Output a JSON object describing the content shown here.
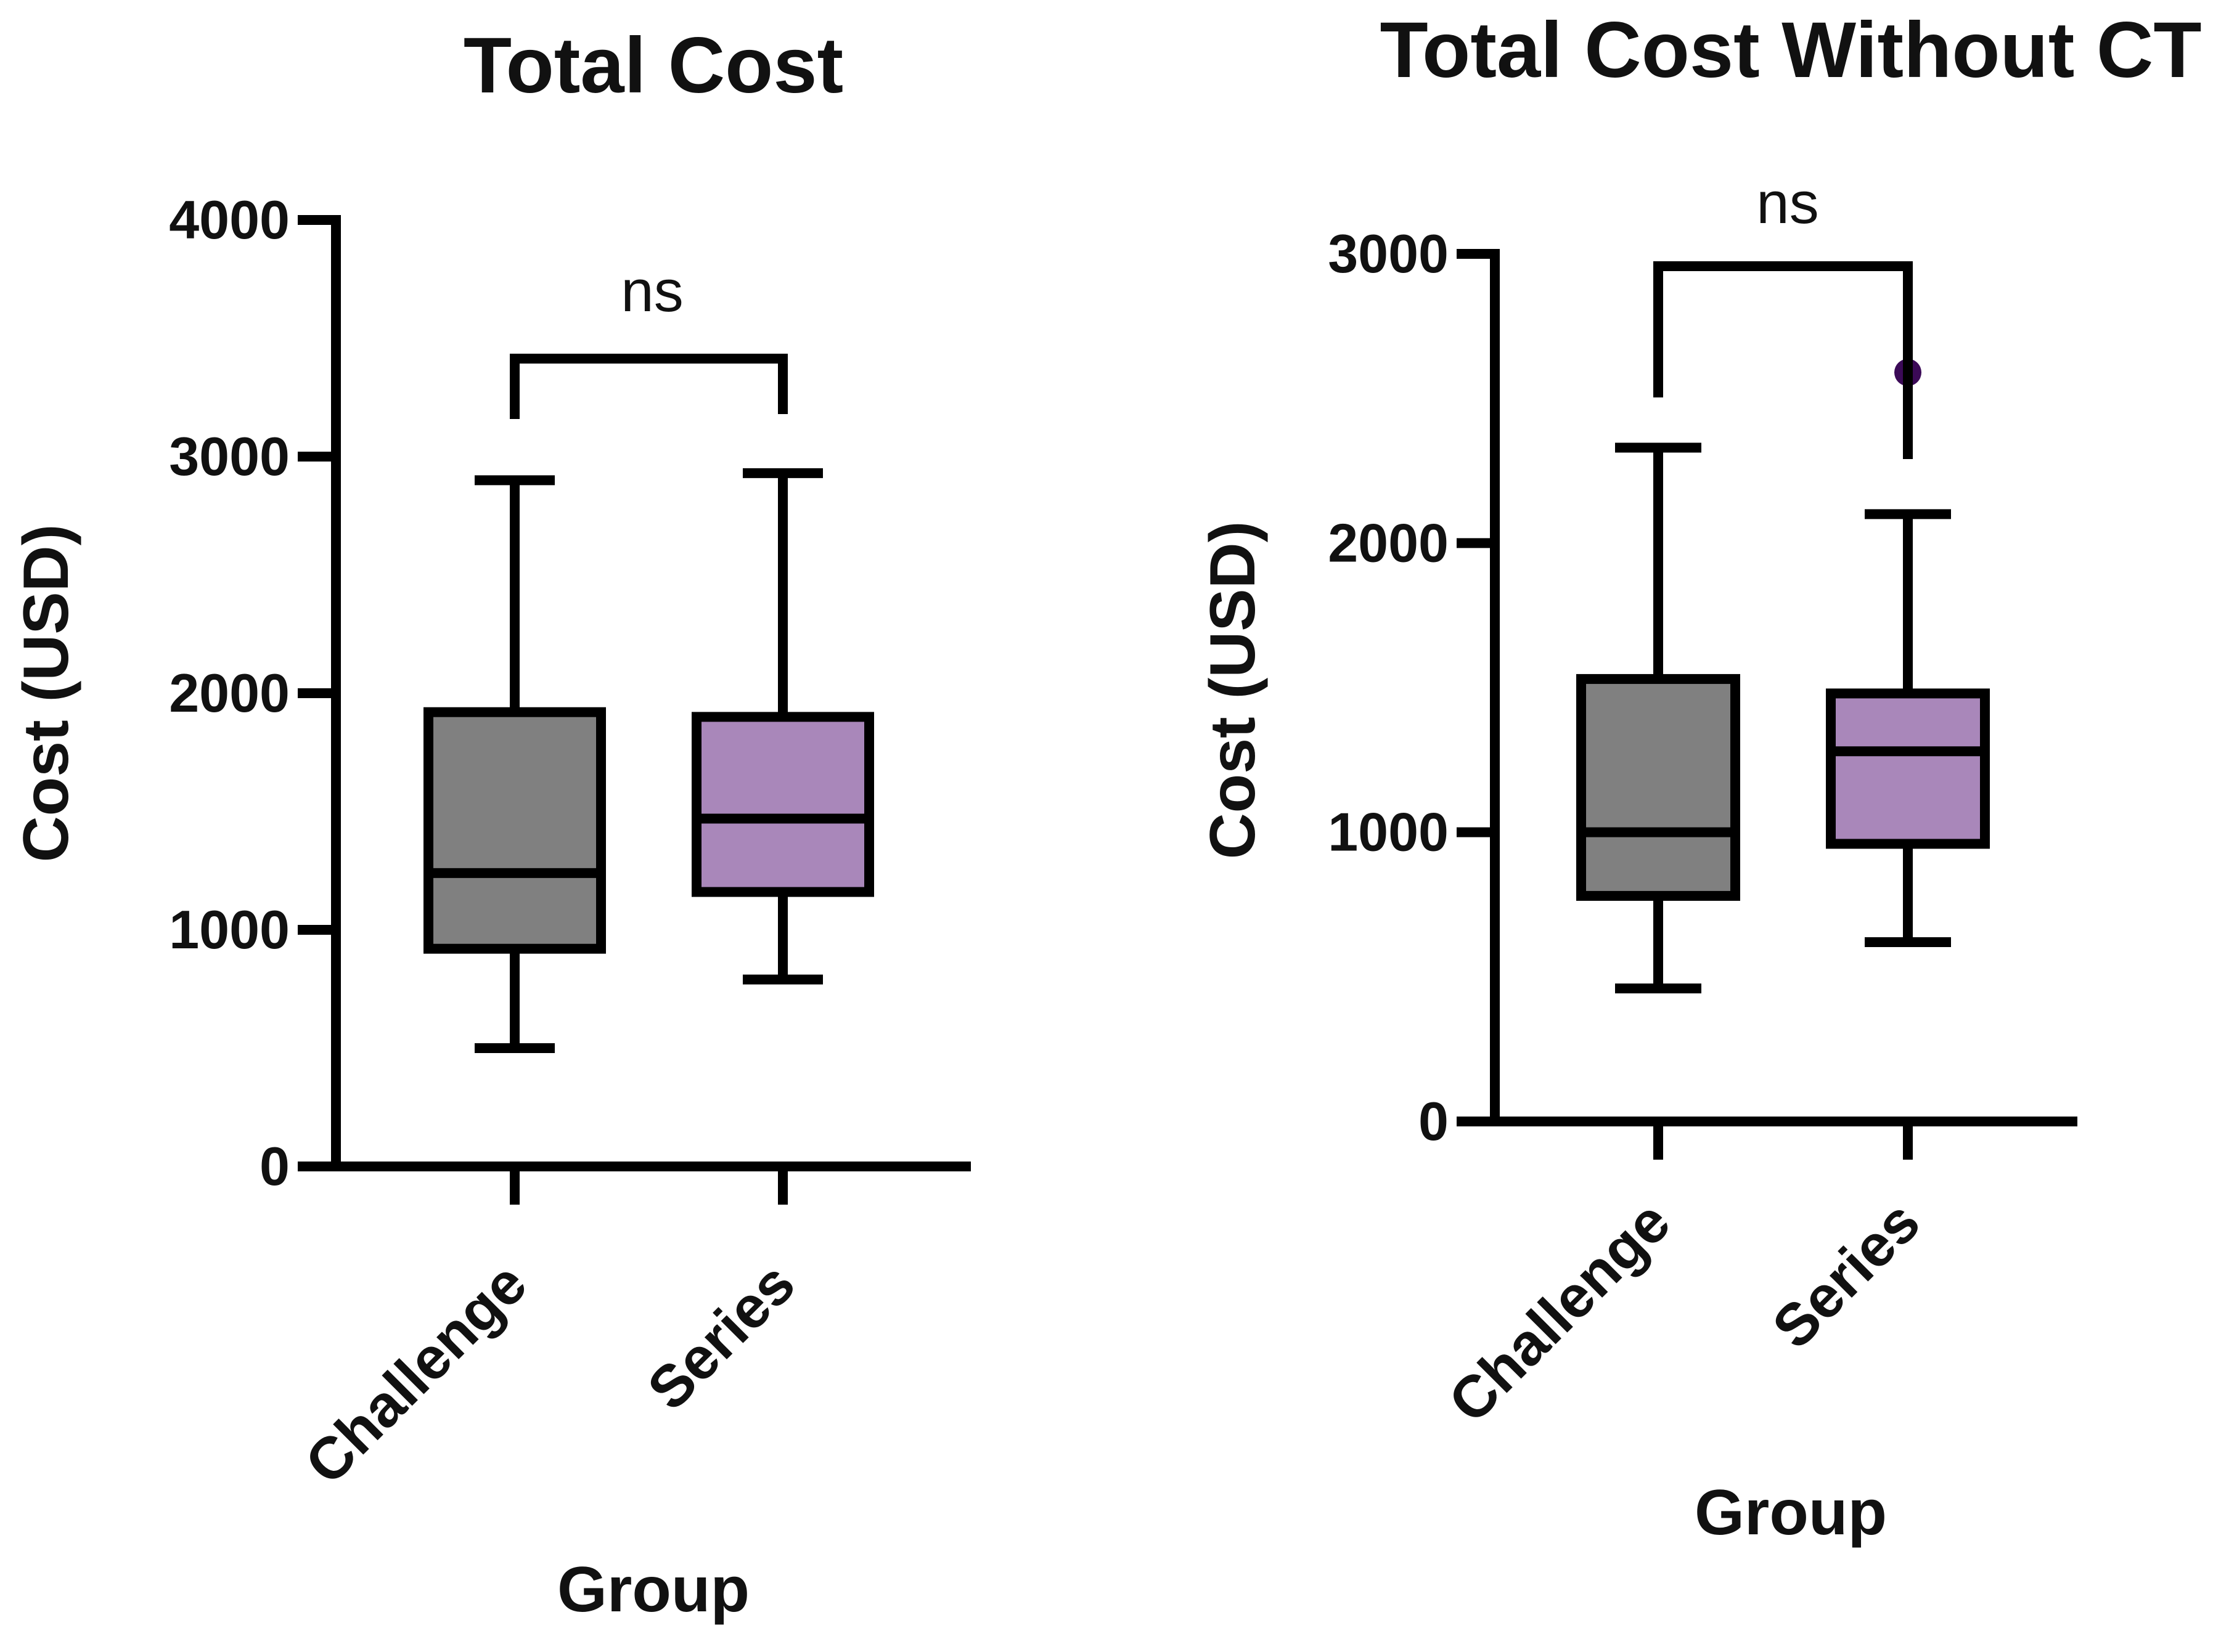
{
  "chart_data": [
    {
      "type": "box",
      "title": "Total Cost",
      "xlabel": "Group",
      "ylabel": "Cost (USD)",
      "ylim": [
        0,
        4000
      ],
      "yticks": [
        0,
        1000,
        2000,
        3000,
        4000
      ],
      "grid": false,
      "categories": [
        "Challenge",
        "Series"
      ],
      "series": [
        {
          "category": "Challenge",
          "color": "#808080",
          "min": 500,
          "q1": 920,
          "median": 1240,
          "q3": 1920,
          "max": 2900,
          "outliers": []
        },
        {
          "category": "Series",
          "color": "#A987BA",
          "min": 790,
          "q1": 1160,
          "median": 1470,
          "q3": 1900,
          "max": 2930,
          "outliers": []
        }
      ],
      "significance": {
        "label": "ns"
      }
    },
    {
      "type": "box",
      "title": "Total Cost Without CT",
      "xlabel": "Group",
      "ylabel": "Cost (USD)",
      "ylim": [
        0,
        3000
      ],
      "yticks": [
        0,
        1000,
        2000,
        3000
      ],
      "grid": false,
      "categories": [
        "Challenge",
        "Series"
      ],
      "series": [
        {
          "category": "Challenge",
          "color": "#808080",
          "min": 460,
          "q1": 780,
          "median": 1000,
          "q3": 1530,
          "max": 2330,
          "outliers": []
        },
        {
          "category": "Series",
          "color": "#A987BA",
          "min": 620,
          "q1": 960,
          "median": 1280,
          "q3": 1480,
          "max": 2100,
          "outliers": [
            2590
          ]
        }
      ],
      "outlier_color": "#3B0A57",
      "significance": {
        "label": "ns"
      }
    }
  ]
}
